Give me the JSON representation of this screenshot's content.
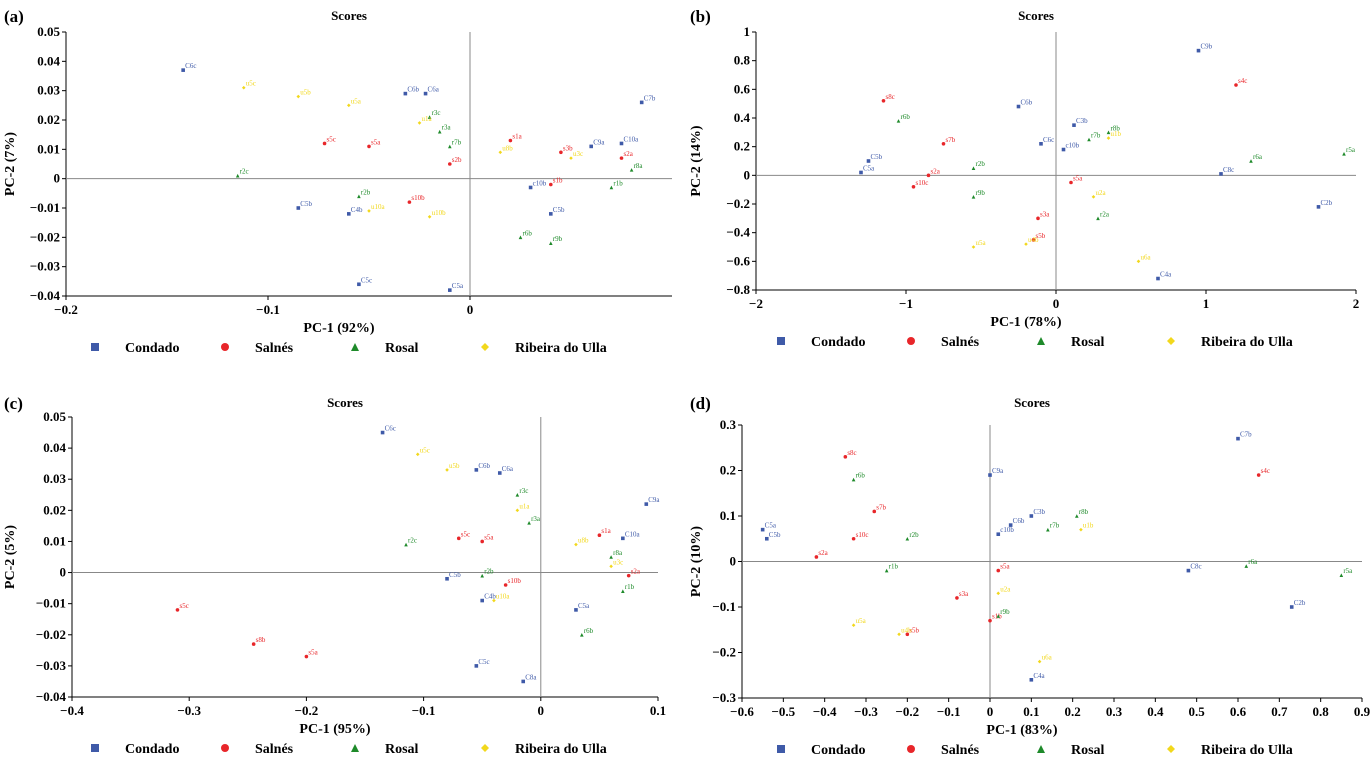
{
  "colors": {
    "Condado": "#3f5aa8",
    "Salnés": "#e8262a",
    "Rosal": "#1e8a2a",
    "Ribeira do Ulla": "#f2d81c",
    "axis": "#000000",
    "zero_line": "#888888"
  },
  "legend": [
    {
      "name": "Condado",
      "marker": "square-icon"
    },
    {
      "name": "Salnés",
      "marker": "circle-icon"
    },
    {
      "name": "Rosal",
      "marker": "triangle-icon"
    },
    {
      "name": "Ribeira do Ulla",
      "marker": "diamond-icon"
    }
  ],
  "chart_data": [
    {
      "panel": "(a)",
      "type": "scatter",
      "title": "Scores",
      "xlabel": "PC-1 (92%)",
      "ylabel": "PC-2 (7%)",
      "xlim": [
        -0.2,
        0.1
      ],
      "ylim": [
        -0.04,
        0.05
      ],
      "xticks": [
        -0.2,
        -0.1,
        0
      ],
      "xtick_labels": [
        "−0.2",
        "−0.1",
        "0"
      ],
      "yticks": [
        -0.04,
        -0.03,
        -0.02,
        -0.01,
        0,
        0.01,
        0.02,
        0.03,
        0.04,
        0.05
      ],
      "ytick_labels": [
        "−0.04",
        "−0.03",
        "−0.02",
        "−0.01",
        "0",
        "0.01",
        "0.02",
        "0.03",
        "0.04",
        "0.05"
      ],
      "points": [
        {
          "s": "Condado",
          "x": -0.142,
          "y": 0.037,
          "t": "C6c"
        },
        {
          "s": "Condado",
          "x": -0.032,
          "y": 0.029,
          "t": "C6b"
        },
        {
          "s": "Condado",
          "x": -0.022,
          "y": 0.029,
          "t": "C6a"
        },
        {
          "s": "Condado",
          "x": -0.085,
          "y": -0.01,
          "t": "C5b"
        },
        {
          "s": "Condado",
          "x": -0.06,
          "y": -0.012,
          "t": "C4b"
        },
        {
          "s": "Condado",
          "x": -0.055,
          "y": -0.036,
          "t": "C5c"
        },
        {
          "s": "Condado",
          "x": -0.01,
          "y": -0.038,
          "t": "C5a"
        },
        {
          "s": "Condado",
          "x": 0.085,
          "y": 0.026,
          "t": "C7b"
        },
        {
          "s": "Condado",
          "x": 0.06,
          "y": 0.011,
          "t": "C9a"
        },
        {
          "s": "Condado",
          "x": 0.075,
          "y": 0.012,
          "t": "C10a"
        },
        {
          "s": "Condado",
          "x": 0.04,
          "y": -0.012,
          "t": "C5b"
        },
        {
          "s": "Condado",
          "x": 0.03,
          "y": -0.003,
          "t": "c10b"
        },
        {
          "s": "Salnés",
          "x": -0.072,
          "y": 0.012,
          "t": "s5c"
        },
        {
          "s": "Salnés",
          "x": -0.05,
          "y": 0.011,
          "t": "s5a"
        },
        {
          "s": "Salnés",
          "x": -0.03,
          "y": -0.008,
          "t": "s10b"
        },
        {
          "s": "Salnés",
          "x": -0.01,
          "y": 0.005,
          "t": "s2b"
        },
        {
          "s": "Salnés",
          "x": 0.02,
          "y": 0.013,
          "t": "s1a"
        },
        {
          "s": "Salnés",
          "x": 0.045,
          "y": 0.009,
          "t": "s3b"
        },
        {
          "s": "Salnés",
          "x": 0.075,
          "y": 0.007,
          "t": "s2a"
        },
        {
          "s": "Salnés",
          "x": 0.04,
          "y": -0.002,
          "t": "s1b"
        },
        {
          "s": "Rosal",
          "x": -0.115,
          "y": 0.001,
          "t": "r2c"
        },
        {
          "s": "Rosal",
          "x": -0.02,
          "y": 0.021,
          "t": "r3c"
        },
        {
          "s": "Rosal",
          "x": -0.015,
          "y": 0.016,
          "t": "r3a"
        },
        {
          "s": "Rosal",
          "x": -0.01,
          "y": 0.011,
          "t": "r7b"
        },
        {
          "s": "Rosal",
          "x": -0.055,
          "y": -0.006,
          "t": "r2b"
        },
        {
          "s": "Rosal",
          "x": 0.025,
          "y": -0.02,
          "t": "r6b"
        },
        {
          "s": "Rosal",
          "x": 0.04,
          "y": -0.022,
          "t": "r9b"
        },
        {
          "s": "Rosal",
          "x": 0.07,
          "y": -0.003,
          "t": "r1b"
        },
        {
          "s": "Rosal",
          "x": 0.08,
          "y": 0.003,
          "t": "r8a"
        },
        {
          "s": "Ribeira do Ulla",
          "x": -0.112,
          "y": 0.031,
          "t": "u5c"
        },
        {
          "s": "Ribeira do Ulla",
          "x": -0.085,
          "y": 0.028,
          "t": "u5b"
        },
        {
          "s": "Ribeira do Ulla",
          "x": -0.06,
          "y": 0.025,
          "t": "u5a"
        },
        {
          "s": "Ribeira do Ulla",
          "x": -0.025,
          "y": 0.019,
          "t": "u1a"
        },
        {
          "s": "Ribeira do Ulla",
          "x": -0.05,
          "y": -0.011,
          "t": "u10a"
        },
        {
          "s": "Ribeira do Ulla",
          "x": -0.02,
          "y": -0.013,
          "t": "u10b"
        },
        {
          "s": "Ribeira do Ulla",
          "x": 0.015,
          "y": 0.009,
          "t": "u8b"
        },
        {
          "s": "Ribeira do Ulla",
          "x": 0.05,
          "y": 0.007,
          "t": "u3c"
        }
      ]
    },
    {
      "panel": "(b)",
      "type": "scatter",
      "title": "Scores",
      "xlabel": "PC-1 (78%)",
      "ylabel": "PC-2 (14%)",
      "xlim": [
        -2,
        2
      ],
      "ylim": [
        -0.8,
        1
      ],
      "xticks": [
        -2,
        -1,
        0,
        1,
        2
      ],
      "xtick_labels": [
        "−2",
        "−1",
        "0",
        "1",
        "2"
      ],
      "yticks": [
        -0.8,
        -0.6,
        -0.4,
        -0.2,
        0,
        0.2,
        0.4,
        0.6,
        0.8,
        1
      ],
      "ytick_labels": [
        "−0.8",
        "−0.6",
        "−0.4",
        "−0.2",
        "0",
        "0.2",
        "0.4",
        "0.6",
        "0.8",
        "1"
      ],
      "points": [
        {
          "s": "Condado",
          "x": 0.95,
          "y": 0.87,
          "t": "C9b"
        },
        {
          "s": "Condado",
          "x": -0.25,
          "y": 0.48,
          "t": "C6b"
        },
        {
          "s": "Condado",
          "x": -1.3,
          "y": 0.02,
          "t": "C5a"
        },
        {
          "s": "Condado",
          "x": -1.25,
          "y": 0.1,
          "t": "C5b"
        },
        {
          "s": "Condado",
          "x": 0.12,
          "y": 0.35,
          "t": "C3b"
        },
        {
          "s": "Condado",
          "x": -0.1,
          "y": 0.22,
          "t": "C6c"
        },
        {
          "s": "Condado",
          "x": 0.05,
          "y": 0.18,
          "t": "c10b"
        },
        {
          "s": "Condado",
          "x": 1.1,
          "y": 0.01,
          "t": "C8c"
        },
        {
          "s": "Condado",
          "x": 1.75,
          "y": -0.22,
          "t": "C2b"
        },
        {
          "s": "Condado",
          "x": 0.68,
          "y": -0.72,
          "t": "C4a"
        },
        {
          "s": "Salnés",
          "x": -1.15,
          "y": 0.52,
          "t": "s8c"
        },
        {
          "s": "Salnés",
          "x": 1.2,
          "y": 0.63,
          "t": "s4c"
        },
        {
          "s": "Salnés",
          "x": -0.75,
          "y": 0.22,
          "t": "s7b"
        },
        {
          "s": "Salnés",
          "x": -0.95,
          "y": -0.08,
          "t": "s10c"
        },
        {
          "s": "Salnés",
          "x": -0.85,
          "y": 0.0,
          "t": "s2a"
        },
        {
          "s": "Salnés",
          "x": 0.1,
          "y": -0.05,
          "t": "s5a"
        },
        {
          "s": "Salnés",
          "x": -0.12,
          "y": -0.3,
          "t": "s3a"
        },
        {
          "s": "Salnés",
          "x": -0.15,
          "y": -0.45,
          "t": "s5b"
        },
        {
          "s": "Rosal",
          "x": -1.05,
          "y": 0.38,
          "t": "r6b"
        },
        {
          "s": "Rosal",
          "x": 0.35,
          "y": 0.3,
          "t": "r8b"
        },
        {
          "s": "Rosal",
          "x": 0.22,
          "y": 0.25,
          "t": "r7b"
        },
        {
          "s": "Rosal",
          "x": -0.55,
          "y": 0.05,
          "t": "r2b"
        },
        {
          "s": "Rosal",
          "x": -0.55,
          "y": -0.15,
          "t": "r9b"
        },
        {
          "s": "Rosal",
          "x": 1.3,
          "y": 0.1,
          "t": "r6a"
        },
        {
          "s": "Rosal",
          "x": 1.92,
          "y": 0.15,
          "t": "r5a"
        },
        {
          "s": "Rosal",
          "x": 0.28,
          "y": -0.3,
          "t": "r2a"
        },
        {
          "s": "Ribeira do Ulla",
          "x": 0.35,
          "y": 0.26,
          "t": "u1b"
        },
        {
          "s": "Ribeira do Ulla",
          "x": 0.25,
          "y": -0.15,
          "t": "u2a"
        },
        {
          "s": "Ribeira do Ulla",
          "x": -0.55,
          "y": -0.5,
          "t": "u5a"
        },
        {
          "s": "Ribeira do Ulla",
          "x": -0.2,
          "y": -0.48,
          "t": "u4b"
        },
        {
          "s": "Ribeira do Ulla",
          "x": 0.55,
          "y": -0.6,
          "t": "u6a"
        }
      ]
    },
    {
      "panel": "(c)",
      "type": "scatter",
      "title": "Scores",
      "xlabel": "PC-1 (95%)",
      "ylabel": "PC-2 (5%)",
      "xlim": [
        -0.4,
        0.1
      ],
      "ylim": [
        -0.04,
        0.05
      ],
      "xticks": [
        -0.4,
        -0.3,
        -0.2,
        -0.1,
        0,
        0.1
      ],
      "xtick_labels": [
        "−0.4",
        "−0.3",
        "−0.2",
        "−0.1",
        "0",
        "0.1"
      ],
      "yticks": [
        -0.04,
        -0.03,
        -0.02,
        -0.01,
        0,
        0.01,
        0.02,
        0.03,
        0.04,
        0.05
      ],
      "ytick_labels": [
        "−0.04",
        "−0.03",
        "−0.02",
        "−0.01",
        "0",
        "0.01",
        "0.02",
        "0.03",
        "0.04",
        "0.05"
      ],
      "points": [
        {
          "s": "Condado",
          "x": -0.135,
          "y": 0.045,
          "t": "C6c"
        },
        {
          "s": "Condado",
          "x": -0.055,
          "y": 0.033,
          "t": "C6b"
        },
        {
          "s": "Condado",
          "x": -0.035,
          "y": 0.032,
          "t": "C6a"
        },
        {
          "s": "Condado",
          "x": 0.09,
          "y": 0.022,
          "t": "C9a"
        },
        {
          "s": "Condado",
          "x": 0.07,
          "y": 0.011,
          "t": "C10a"
        },
        {
          "s": "Condado",
          "x": -0.08,
          "y": -0.002,
          "t": "C5b"
        },
        {
          "s": "Condado",
          "x": -0.05,
          "y": -0.009,
          "t": "C4b"
        },
        {
          "s": "Condado",
          "x": 0.03,
          "y": -0.012,
          "t": "C5a"
        },
        {
          "s": "Condado",
          "x": -0.055,
          "y": -0.03,
          "t": "C5c"
        },
        {
          "s": "Condado",
          "x": -0.015,
          "y": -0.035,
          "t": "C8a"
        },
        {
          "s": "Salnés",
          "x": -0.31,
          "y": -0.012,
          "t": "s5c"
        },
        {
          "s": "Salnés",
          "x": -0.245,
          "y": -0.023,
          "t": "s8b"
        },
        {
          "s": "Salnés",
          "x": -0.2,
          "y": -0.027,
          "t": "s5a"
        },
        {
          "s": "Salnés",
          "x": -0.07,
          "y": 0.011,
          "t": "s5c"
        },
        {
          "s": "Salnés",
          "x": -0.05,
          "y": 0.01,
          "t": "s5a"
        },
        {
          "s": "Salnés",
          "x": 0.05,
          "y": 0.012,
          "t": "s1a"
        },
        {
          "s": "Salnés",
          "x": 0.075,
          "y": -0.001,
          "t": "s2a"
        },
        {
          "s": "Salnés",
          "x": -0.03,
          "y": -0.004,
          "t": "s10b"
        },
        {
          "s": "Rosal",
          "x": -0.115,
          "y": 0.009,
          "t": "r2c"
        },
        {
          "s": "Rosal",
          "x": -0.02,
          "y": 0.025,
          "t": "r3c"
        },
        {
          "s": "Rosal",
          "x": -0.01,
          "y": 0.016,
          "t": "r3a"
        },
        {
          "s": "Rosal",
          "x": -0.05,
          "y": -0.001,
          "t": "r2b"
        },
        {
          "s": "Rosal",
          "x": 0.035,
          "y": -0.02,
          "t": "r6b"
        },
        {
          "s": "Rosal",
          "x": 0.07,
          "y": -0.006,
          "t": "r1b"
        },
        {
          "s": "Rosal",
          "x": 0.06,
          "y": 0.005,
          "t": "r8a"
        },
        {
          "s": "Ribeira do Ulla",
          "x": -0.105,
          "y": 0.038,
          "t": "u5c"
        },
        {
          "s": "Ribeira do Ulla",
          "x": -0.08,
          "y": 0.033,
          "t": "u5b"
        },
        {
          "s": "Ribeira do Ulla",
          "x": -0.02,
          "y": 0.02,
          "t": "u1a"
        },
        {
          "s": "Ribeira do Ulla",
          "x": -0.04,
          "y": -0.009,
          "t": "u10a"
        },
        {
          "s": "Ribeira do Ulla",
          "x": 0.03,
          "y": 0.009,
          "t": "u8b"
        },
        {
          "s": "Ribeira do Ulla",
          "x": 0.06,
          "y": 0.002,
          "t": "u3c"
        }
      ]
    },
    {
      "panel": "(d)",
      "type": "scatter",
      "title": "Scores",
      "xlabel": "PC-1 (83%)",
      "ylabel": "PC-2 (10%)",
      "xlim": [
        -0.6,
        0.9
      ],
      "ylim": [
        -0.3,
        0.3
      ],
      "xticks": [
        -0.6,
        -0.5,
        -0.4,
        -0.3,
        -0.2,
        -0.1,
        0,
        0.1,
        0.2,
        0.3,
        0.4,
        0.5,
        0.6,
        0.7,
        0.8,
        0.9
      ],
      "xtick_labels": [
        "−0.6",
        "−0.5",
        "−0.4",
        "−0.3",
        "−0.2",
        "−0.1",
        "0",
        "0.1",
        "0.2",
        "0.3",
        "0.4",
        "0.5",
        "0.6",
        "0.7",
        "0.8",
        "0.9"
      ],
      "yticks": [
        -0.3,
        -0.2,
        -0.1,
        0,
        0.1,
        0.2,
        0.3
      ],
      "ytick_labels": [
        "−0.3",
        "−0.2",
        "−0.1",
        "0",
        "0.1",
        "0.2",
        "0.3"
      ],
      "points": [
        {
          "s": "Condado",
          "x": 0.6,
          "y": 0.27,
          "t": "C7b"
        },
        {
          "s": "Condado",
          "x": 0.0,
          "y": 0.19,
          "t": "C9a"
        },
        {
          "s": "Condado",
          "x": -0.55,
          "y": 0.07,
          "t": "C5a"
        },
        {
          "s": "Condado",
          "x": -0.54,
          "y": 0.05,
          "t": "C5b"
        },
        {
          "s": "Condado",
          "x": 0.1,
          "y": 0.1,
          "t": "C3b"
        },
        {
          "s": "Condado",
          "x": 0.05,
          "y": 0.08,
          "t": "C6b"
        },
        {
          "s": "Condado",
          "x": 0.02,
          "y": 0.06,
          "t": "c10b"
        },
        {
          "s": "Condado",
          "x": 0.48,
          "y": -0.02,
          "t": "C8c"
        },
        {
          "s": "Condado",
          "x": 0.73,
          "y": -0.1,
          "t": "C2b"
        },
        {
          "s": "Condado",
          "x": 0.1,
          "y": -0.26,
          "t": "C4a"
        },
        {
          "s": "Salnés",
          "x": -0.35,
          "y": 0.23,
          "t": "s8c"
        },
        {
          "s": "Salnés",
          "x": 0.65,
          "y": 0.19,
          "t": "s4c"
        },
        {
          "s": "Salnés",
          "x": -0.28,
          "y": 0.11,
          "t": "s7b"
        },
        {
          "s": "Salnés",
          "x": -0.33,
          "y": 0.05,
          "t": "s10c"
        },
        {
          "s": "Salnés",
          "x": -0.42,
          "y": 0.01,
          "t": "s2a"
        },
        {
          "s": "Salnés",
          "x": 0.02,
          "y": -0.02,
          "t": "s5a"
        },
        {
          "s": "Salnés",
          "x": -0.08,
          "y": -0.08,
          "t": "s3a"
        },
        {
          "s": "Salnés",
          "x": -0.2,
          "y": -0.16,
          "t": "s5b"
        },
        {
          "s": "Salnés",
          "x": 0.0,
          "y": -0.13,
          "t": "s1b"
        },
        {
          "s": "Rosal",
          "x": -0.33,
          "y": 0.18,
          "t": "r6b"
        },
        {
          "s": "Rosal",
          "x": 0.21,
          "y": 0.1,
          "t": "r8b"
        },
        {
          "s": "Rosal",
          "x": 0.14,
          "y": 0.07,
          "t": "r7b"
        },
        {
          "s": "Rosal",
          "x": -0.2,
          "y": 0.05,
          "t": "r2b"
        },
        {
          "s": "Rosal",
          "x": -0.25,
          "y": -0.02,
          "t": "r1b"
        },
        {
          "s": "Rosal",
          "x": 0.62,
          "y": -0.01,
          "t": "r6a"
        },
        {
          "s": "Rosal",
          "x": 0.85,
          "y": -0.03,
          "t": "r5a"
        },
        {
          "s": "Rosal",
          "x": 0.02,
          "y": -0.12,
          "t": "r9b"
        },
        {
          "s": "Ribeira do Ulla",
          "x": 0.22,
          "y": 0.07,
          "t": "u1b"
        },
        {
          "s": "Ribeira do Ulla",
          "x": 0.02,
          "y": -0.07,
          "t": "u2a"
        },
        {
          "s": "Ribeira do Ulla",
          "x": -0.33,
          "y": -0.14,
          "t": "u5a"
        },
        {
          "s": "Ribeira do Ulla",
          "x": -0.22,
          "y": -0.16,
          "t": "u4b"
        },
        {
          "s": "Ribeira do Ulla",
          "x": 0.12,
          "y": -0.22,
          "t": "u6a"
        }
      ]
    }
  ]
}
